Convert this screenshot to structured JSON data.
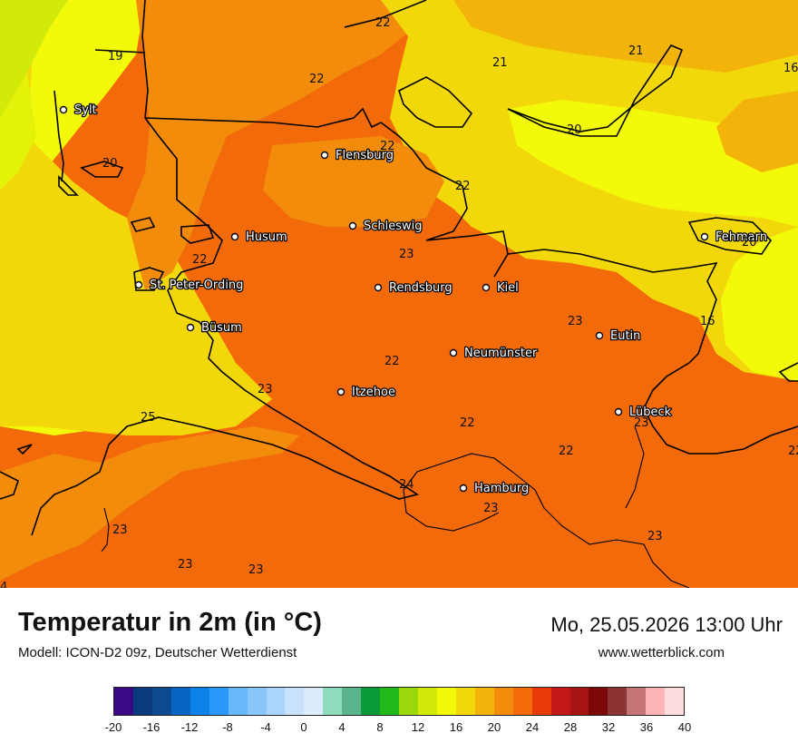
{
  "map": {
    "cities": [
      {
        "name": "Sylt"
      },
      {
        "name": "Flensburg"
      },
      {
        "name": "Schleswig"
      },
      {
        "name": "Husum"
      },
      {
        "name": "St. Peter-Ording"
      },
      {
        "name": "Rendsburg"
      },
      {
        "name": "Kiel"
      },
      {
        "name": "Büsum"
      },
      {
        "name": "Neumünster"
      },
      {
        "name": "Eutin"
      },
      {
        "name": "Itzehoe"
      },
      {
        "name": "Lübeck"
      },
      {
        "name": "Hamburg"
      },
      {
        "name": "Fehmarn"
      }
    ],
    "contour_labels": [
      "22",
      "19",
      "22",
      "21",
      "21",
      "16",
      "22",
      "20",
      "20",
      "22",
      "22",
      "23",
      "23",
      "16",
      "22",
      "23",
      "25",
      "22",
      "23",
      "22",
      "24",
      "23",
      "23",
      "23",
      "23",
      "20",
      "4"
    ]
  },
  "footer": {
    "title": "Temperatur in 2m (in °C)",
    "model": "Modell: ICON-D2 09z, Deutscher Wetterdienst",
    "valid_time": "Mo, 25.05.2026 13:00 Uhr",
    "website": "www.wetterblick.com"
  },
  "scale": {
    "colors": [
      "#3a0a86",
      "#0b3a7c",
      "#0e4a90",
      "#0a64c2",
      "#0a82e8",
      "#2a98f8",
      "#6ab8fc",
      "#8ac6fc",
      "#aad4fc",
      "#c8e2fc",
      "#dcecfc",
      "#8edcbc",
      "#5ab48c",
      "#0a9a3a",
      "#22b81a",
      "#9ad80a",
      "#d2ea0a",
      "#f2fa0a",
      "#f2d80a",
      "#f2b40a",
      "#f28c0a",
      "#f26a0a",
      "#e83a0a",
      "#c41818",
      "#a81414",
      "#7c0808",
      "#8c3434",
      "#c47474",
      "#fcb4b4",
      "#fcdcdc"
    ],
    "ticks": [
      "-20",
      "-16",
      "-12",
      "-8",
      "-4",
      "0",
      "4",
      "8",
      "12",
      "16",
      "20",
      "24",
      "28",
      "32",
      "36",
      "40"
    ]
  }
}
